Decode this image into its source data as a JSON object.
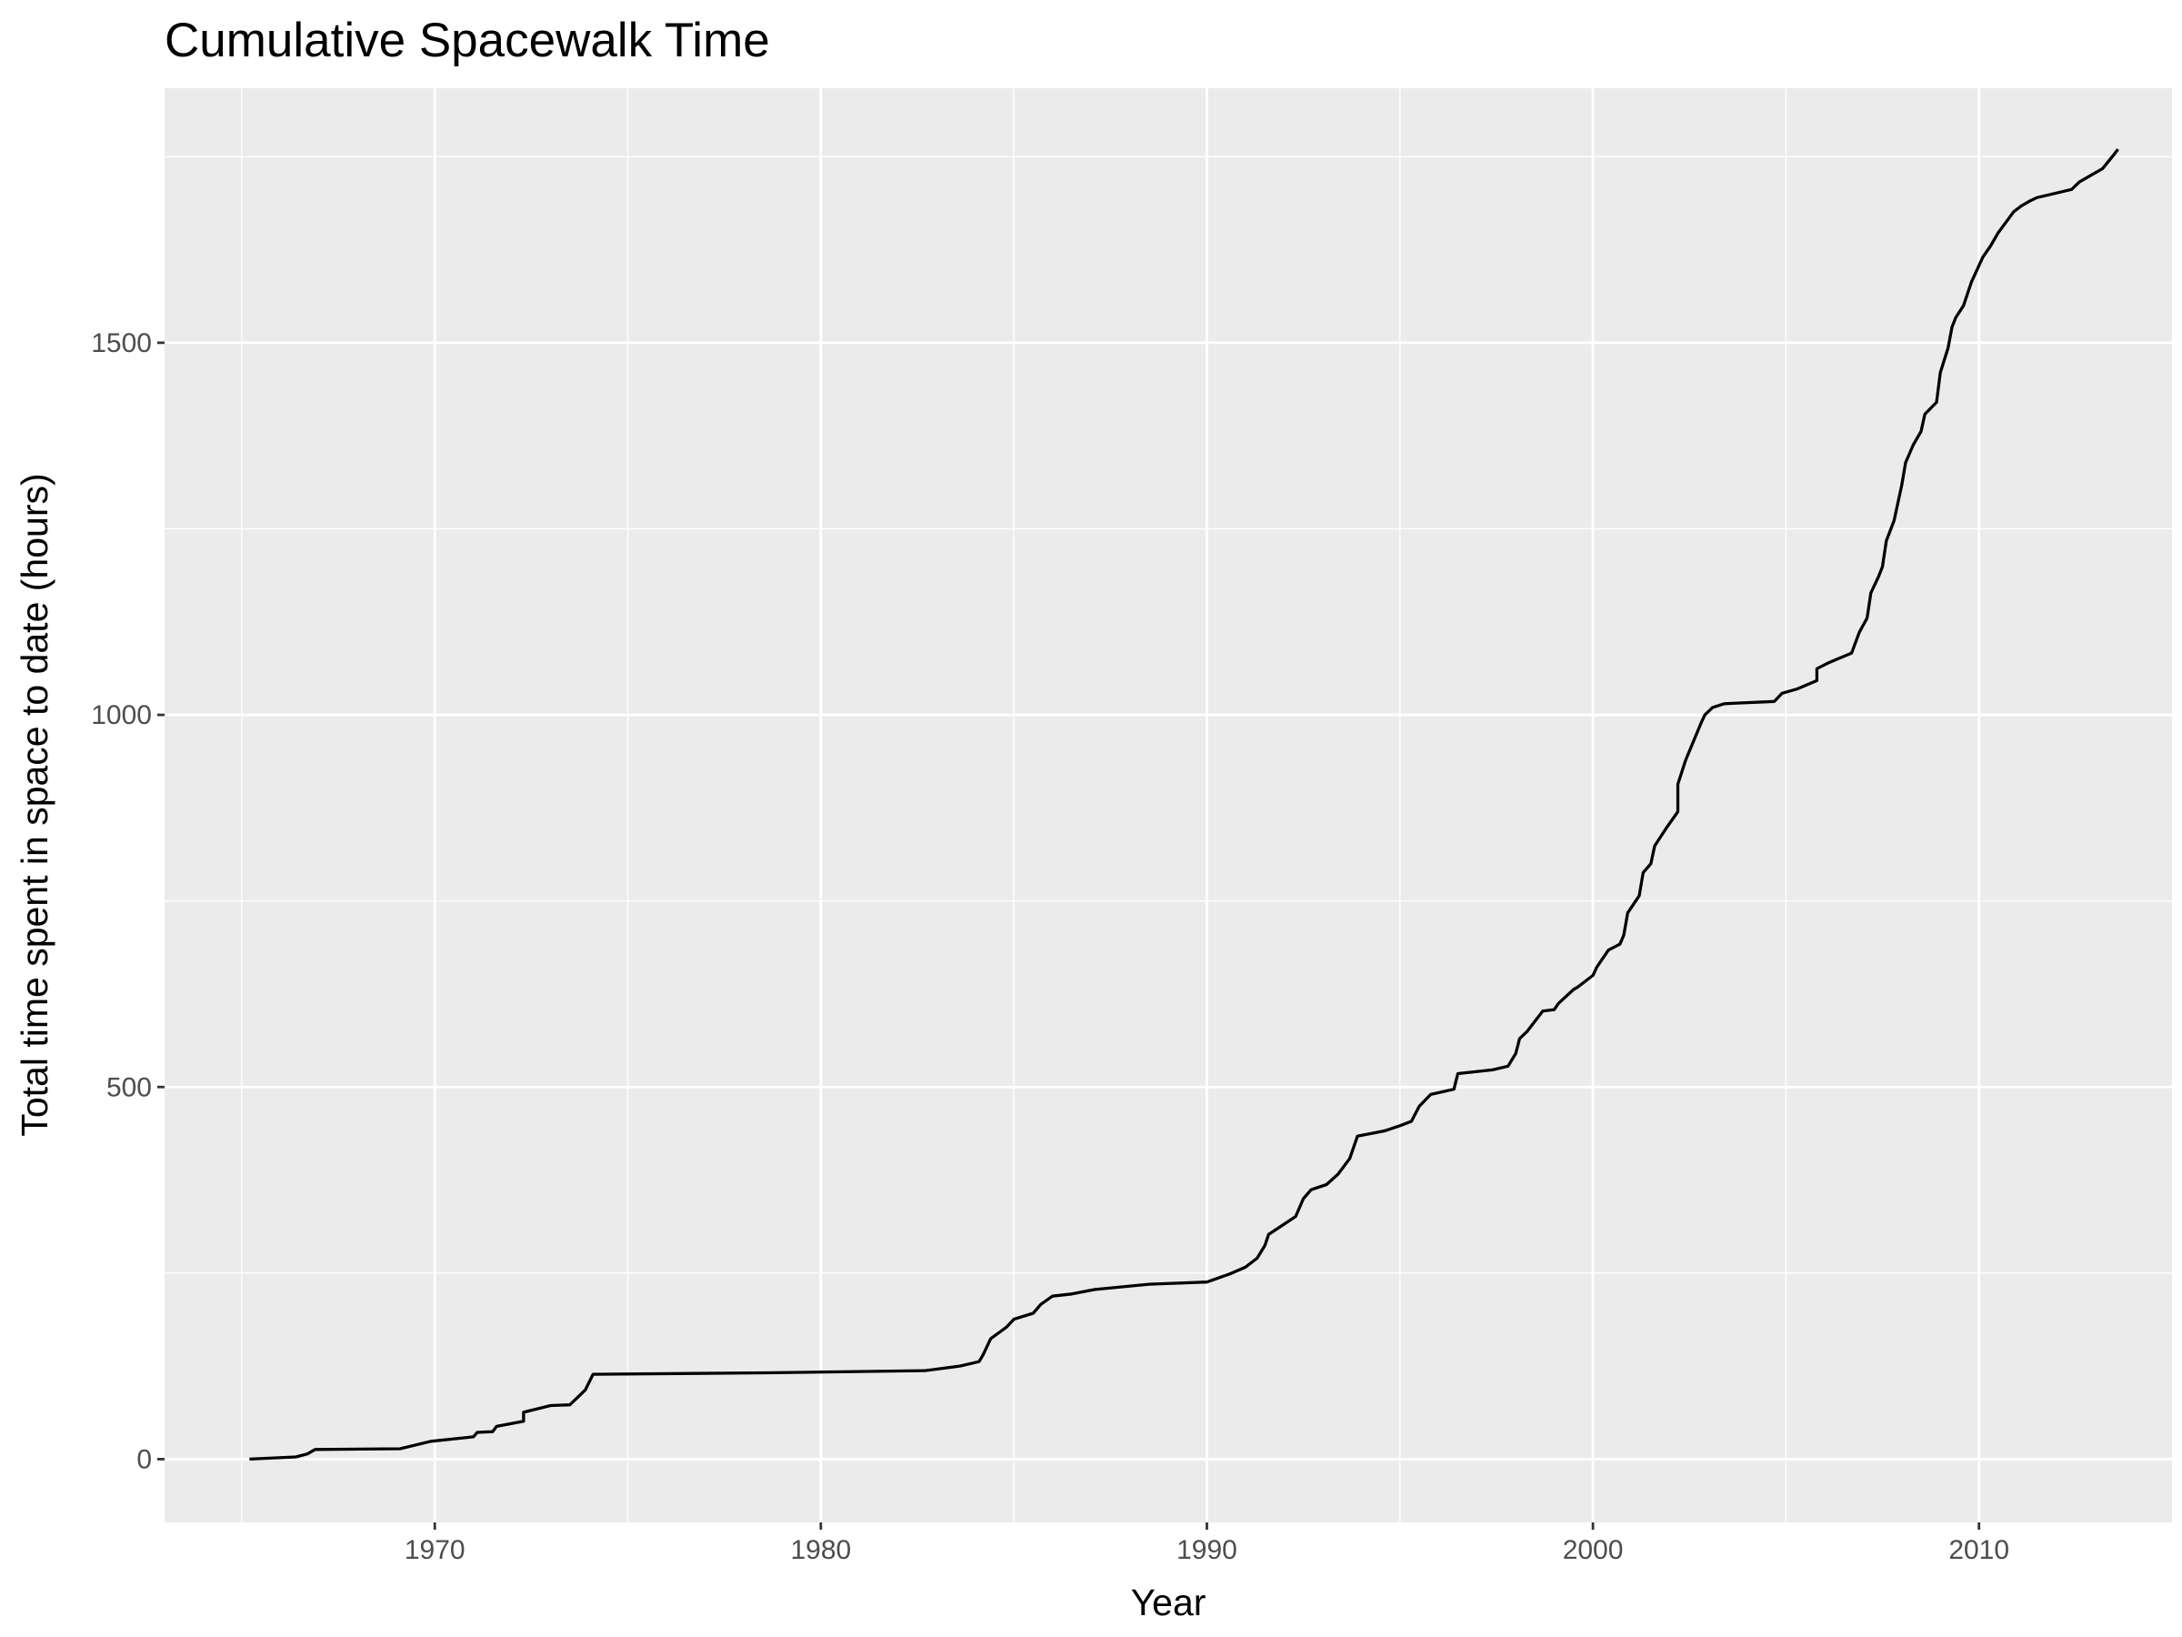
{
  "chart_data": {
    "type": "line",
    "title": "Cumulative Spacewalk Time",
    "xlabel": "Year",
    "ylabel": "Total time spent in space to date (hours)",
    "xlim": [
      1963,
      2015
    ],
    "ylim": [
      -85,
      1842
    ],
    "x_ticks": [
      1970,
      1980,
      1990,
      2000,
      2010
    ],
    "x_tick_labels": [
      "1970",
      "1980",
      "1990",
      "2000",
      "2010"
    ],
    "y_ticks": [
      0,
      500,
      1000,
      1500
    ],
    "y_tick_labels": [
      "0",
      "500",
      "1000",
      "1500"
    ],
    "grid": true,
    "legend": "none",
    "colors": {
      "panel_background": "#ebebeb",
      "grid": "#ffffff",
      "line": "#000000",
      "tick_text": "#4d4d4d"
    },
    "series": [
      {
        "x": [
          1965.2,
          1966.4,
          1966.7,
          1966.9,
          1969.1,
          1969.9,
          1971.0,
          1971.1,
          1971.5,
          1971.6,
          1972.3,
          1972.3,
          1973.0,
          1973.5,
          1973.9,
          1974.1,
          1978.6,
          1982.7,
          1983.6,
          1984.1,
          1984.2,
          1984.4,
          1984.8,
          1985.0,
          1985.5,
          1985.7,
          1986.0,
          1986.5,
          1987.1,
          1988.5,
          1990.0,
          1990.6,
          1991.0,
          1991.3,
          1991.5,
          1991.6,
          1992.3,
          1992.5,
          1992.7,
          1993.1,
          1993.4,
          1993.7,
          1993.9,
          1994.6,
          1995.0,
          1995.3,
          1995.5,
          1995.8,
          1996.4,
          1996.5,
          1997.4,
          1997.8,
          1998.0,
          1998.1,
          1998.3,
          1998.7,
          1999.0,
          1999.1,
          1999.5,
          1999.6,
          2000.0,
          2000.1,
          2000.4,
          2000.7,
          2000.8,
          2000.9,
          2001.2,
          2001.3,
          2001.5,
          2001.6,
          2001.9,
          2002.2,
          2002.2,
          2002.4,
          2002.6,
          2002.8,
          2002.9,
          2003.1,
          2003.4,
          2004.7,
          2004.9,
          2005.3,
          2005.8,
          2005.8,
          2006.1,
          2006.7,
          2006.9,
          2007.1,
          2007.2,
          2007.4,
          2007.5,
          2007.6,
          2007.8,
          2008.0,
          2008.1,
          2008.3,
          2008.5,
          2008.6,
          2008.9,
          2009.0,
          2009.2,
          2009.3,
          2009.4,
          2009.6,
          2009.8,
          2010.1,
          2010.3,
          2010.5,
          2010.9,
          2011.1,
          2011.3,
          2011.5,
          2012.4,
          2012.6,
          2013.2,
          2013.5,
          2013.6
        ],
        "y": [
          0,
          3,
          7,
          13,
          14,
          24,
          30,
          36,
          37,
          44,
          51,
          63,
          72,
          73,
          93,
          114,
          116,
          119,
          125,
          131,
          140,
          162,
          177,
          188,
          196,
          208,
          219,
          222,
          228,
          235,
          238,
          249,
          258,
          270,
          287,
          302,
          326,
          350,
          362,
          369,
          383,
          404,
          434,
          441,
          448,
          454,
          474,
          490,
          497,
          518,
          523,
          528,
          545,
          565,
          575,
          602,
          604,
          612,
          631,
          634,
          650,
          661,
          684,
          692,
          704,
          734,
          757,
          788,
          800,
          824,
          848,
          870,
          907,
          939,
          964,
          989,
          1000,
          1010,
          1015,
          1018,
          1029,
          1035,
          1046,
          1062,
          1070,
          1083,
          1111,
          1130,
          1164,
          1186,
          1199,
          1234,
          1261,
          1309,
          1339,
          1363,
          1381,
          1404,
          1420,
          1460,
          1493,
          1521,
          1534,
          1550,
          1581,
          1615,
          1630,
          1648,
          1676,
          1684,
          1690,
          1695,
          1706,
          1716,
          1734,
          1753,
          1760
        ]
      }
    ]
  }
}
